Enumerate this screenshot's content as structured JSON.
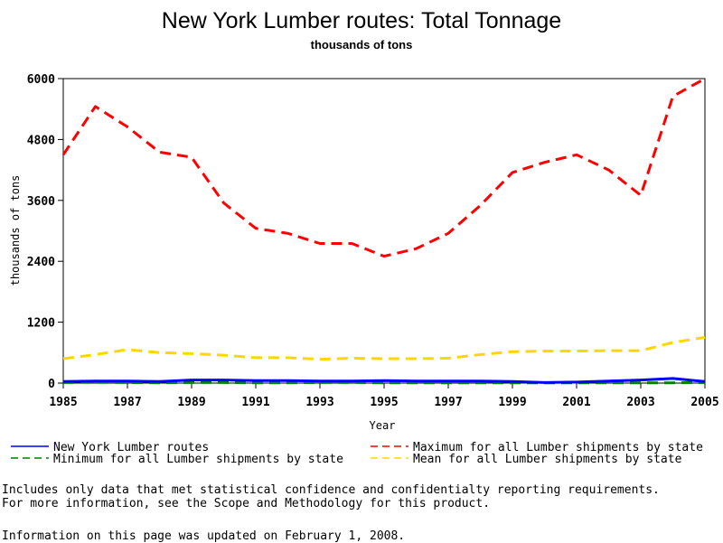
{
  "chart_data": {
    "type": "line",
    "title": "New York Lumber routes: Total Tonnage",
    "subtitle": "thousands of tons",
    "xlabel": "Year",
    "ylabel": "thousands of tons",
    "xlim": [
      1985,
      2005
    ],
    "ylim": [
      0,
      6000
    ],
    "xticks": [
      1985,
      1987,
      1989,
      1991,
      1993,
      1995,
      1997,
      1999,
      2001,
      2003,
      2005
    ],
    "yticks": [
      0,
      1200,
      2400,
      3600,
      4800,
      6000
    ],
    "x": [
      1985,
      1986,
      1987,
      1988,
      1989,
      1990,
      1991,
      1992,
      1993,
      1994,
      1995,
      1996,
      1997,
      1998,
      1999,
      2000,
      2001,
      2002,
      2003,
      2004,
      2005
    ],
    "series": [
      {
        "name": "New York Lumber routes",
        "color": "#0000ff",
        "style": "solid",
        "values": [
          30,
          40,
          40,
          30,
          60,
          60,
          50,
          50,
          40,
          40,
          50,
          40,
          40,
          40,
          30,
          10,
          20,
          40,
          60,
          90,
          30
        ]
      },
      {
        "name": "Maximum for all Lumber shipments by state",
        "color": "#ff0000",
        "style": "dashed",
        "values": [
          4500,
          5450,
          5050,
          4550,
          4450,
          3550,
          3050,
          2950,
          2750,
          2750,
          2500,
          2650,
          2950,
          3500,
          4150,
          4350,
          4500,
          4200,
          3700,
          5650,
          6000
        ]
      },
      {
        "name": "Minimum for all Lumber shipments by state",
        "color": "#008000",
        "style": "dashed",
        "values": [
          10,
          15,
          10,
          5,
          10,
          10,
          5,
          5,
          10,
          10,
          5,
          5,
          5,
          5,
          5,
          5,
          5,
          5,
          5,
          5,
          10
        ]
      },
      {
        "name": "Mean for all Lumber shipments by state",
        "color": "#ffd700",
        "style": "dashed",
        "values": [
          480,
          560,
          660,
          600,
          580,
          550,
          500,
          500,
          470,
          490,
          480,
          480,
          490,
          560,
          620,
          630,
          630,
          640,
          640,
          800,
          900
        ]
      }
    ],
    "legend_position": "bottom"
  },
  "notes": [
    "Includes only data that met statistical confidence and confidentialty reporting requirements.",
    "For more information, see the Scope and Methodology for this product."
  ],
  "updated": "Information on this page was updated on February 1, 2008."
}
